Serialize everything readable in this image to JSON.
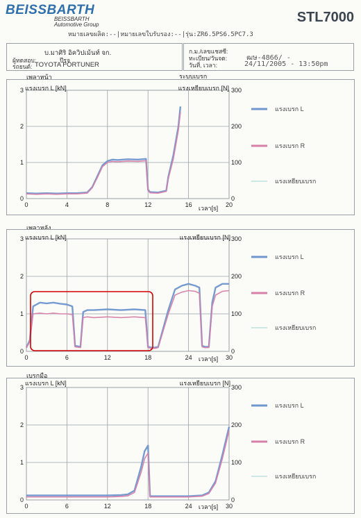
{
  "header": {
    "brand": "BEISSBARTH",
    "brand_sub1": "BEISSBARTH",
    "brand_sub2": "Automotive Group",
    "model": "STL7000",
    "subline": "หมายเลขผลิต:--|หมายเลขใบรับรอง:--|รุ่น:ZR6.5PS6.5PC7.3"
  },
  "info": {
    "company": "บ.มาศิริ อิควิปเม้นท์ จก.",
    "tester_label": "ผู้ทดสอบ:",
    "tester_value": "ปีรุจ",
    "car_label": "รถยนต์:",
    "car_value": "TOYOTA FORTUNER",
    "mileage_label": "ก.ม./เลขแชสซี:",
    "reg_label": "ทะเบียน/วันจด:",
    "reg_value": "ฒษ-4866/ -",
    "date_label": "วันที่, เวลา:",
    "date_value": "24/11/2005 - 13:50pm"
  },
  "charts": {
    "front": {
      "section": "เพลาหน้า",
      "system": "ระบบเบรก",
      "ylabel_left": "แรงเบรก L [kN]",
      "ylabel_right": "แรงเหยียบเบรก [N]",
      "xlabel": "เวลา[s]",
      "legend": [
        "แรงเบรก L",
        "แรงเบรก R",
        "แรงเหยียบเบรก"
      ]
    },
    "rear": {
      "section": "เพลาหลัง",
      "ylabel_left": "แรงเบรก L [kN]",
      "ylabel_right": "แรงเหยียบเบรก [N]",
      "xlabel": "เวลา[s]",
      "legend": [
        "แรงเบรก L",
        "แรงเบรก R",
        "แรงเหยียบเบรก"
      ]
    },
    "hand": {
      "section": "เบรกมือ",
      "ylabel_left": "แรงเบรก L [kN]",
      "ylabel_right": "แรงเหยียบเบรก [N]",
      "xlabel": "เวลา[s]",
      "legend": [
        "แรงเบรก L",
        "แรงเบรก R",
        "แรงเหยียบเบรก"
      ]
    }
  },
  "colors": {
    "left": "#6f96cf",
    "right": "#d77fa8",
    "pedal": "#9fd6cf",
    "highlight": "#d40000",
    "grid": "#9aa0a6"
  },
  "chart_data": [
    {
      "type": "line",
      "title": "เพลาหน้า",
      "xlabel": "เวลา[s]",
      "ylabel": "แรงเบรก L [kN]",
      "y2label": "แรงเหยียบเบรก [N]",
      "xlim": [
        0,
        20
      ],
      "ylim": [
        0,
        3
      ],
      "y2lim": [
        0,
        300
      ],
      "xticks": [
        0,
        4,
        8,
        12,
        16,
        20
      ],
      "yticks": [
        0,
        1,
        2,
        3
      ],
      "y2ticks": [
        0,
        100,
        200,
        300
      ],
      "series": [
        {
          "name": "แรงเบรก L",
          "x": [
            0,
            1,
            2,
            3,
            4,
            5,
            6,
            6.5,
            7,
            7.5,
            8,
            8.5,
            9,
            10,
            11,
            11.8,
            12,
            12.2,
            13,
            13.8,
            14,
            14.5,
            15,
            15.2
          ],
          "y": [
            0.15,
            0.14,
            0.15,
            0.14,
            0.15,
            0.15,
            0.17,
            0.32,
            0.62,
            0.92,
            1.04,
            1.08,
            1.07,
            1.09,
            1.08,
            1.1,
            0.25,
            0.18,
            0.17,
            0.22,
            0.6,
            1.2,
            2.0,
            2.55
          ]
        },
        {
          "name": "แรงเบรก R",
          "x": [
            0,
            1,
            2,
            3,
            4,
            5,
            6,
            6.5,
            7,
            7.5,
            8,
            8.5,
            9,
            10,
            11,
            11.8,
            12,
            12.2,
            13,
            13.8,
            14,
            14.5,
            15,
            15.2
          ],
          "y": [
            0.13,
            0.12,
            0.13,
            0.12,
            0.13,
            0.13,
            0.15,
            0.3,
            0.58,
            0.88,
            1.0,
            1.03,
            1.02,
            1.04,
            1.03,
            1.05,
            0.22,
            0.16,
            0.15,
            0.2,
            0.55,
            1.1,
            1.9,
            2.4
          ]
        }
      ]
    },
    {
      "type": "line",
      "title": "เพลาหลัง",
      "xlabel": "เวลา[s]",
      "ylabel": "แรงเบรก L [kN]",
      "y2label": "แรงเหยียบเบรก [N]",
      "xlim": [
        0,
        30
      ],
      "ylim": [
        0,
        3
      ],
      "y2lim": [
        0,
        300
      ],
      "xticks": [
        0,
        6,
        12,
        18,
        24,
        30
      ],
      "yticks": [
        0,
        1,
        2,
        3
      ],
      "y2ticks": [
        0,
        100,
        200,
        300
      ],
      "series": [
        {
          "name": "แรงเบรก L",
          "x": [
            0,
            0.5,
            1,
            2,
            3,
            4,
            5,
            6,
            6.8,
            7.2,
            8,
            8.4,
            9,
            10,
            12,
            14,
            16,
            17.6,
            18,
            18.5,
            19,
            19.5,
            21,
            22,
            23,
            24,
            25,
            25.6,
            26,
            26.4,
            27,
            27.5,
            28,
            29,
            30
          ],
          "y": [
            0.1,
            0.3,
            1.2,
            1.3,
            1.28,
            1.3,
            1.27,
            1.25,
            1.2,
            0.15,
            0.12,
            1.05,
            1.1,
            1.1,
            1.12,
            1.1,
            1.12,
            1.1,
            0.12,
            0.1,
            0.1,
            0.12,
            1.1,
            1.65,
            1.75,
            1.8,
            1.75,
            1.7,
            0.15,
            0.12,
            0.12,
            1.3,
            1.7,
            1.8,
            1.8
          ]
        },
        {
          "name": "แรงเบรก R",
          "x": [
            0,
            0.5,
            1,
            2,
            3,
            4,
            5,
            6,
            6.8,
            7.2,
            8,
            8.4,
            9,
            10,
            12,
            14,
            16,
            17.6,
            18,
            18.5,
            19,
            19.5,
            21,
            22,
            23,
            24,
            25,
            25.6,
            26,
            26.4,
            27,
            27.5,
            28,
            29,
            30
          ],
          "y": [
            0.1,
            0.25,
            1.0,
            1.02,
            1.0,
            1.02,
            1.0,
            1.0,
            0.98,
            0.12,
            0.1,
            0.9,
            0.92,
            0.9,
            0.92,
            0.9,
            0.92,
            0.9,
            0.1,
            0.08,
            0.08,
            0.1,
            1.0,
            1.5,
            1.58,
            1.62,
            1.6,
            1.55,
            0.12,
            0.1,
            0.1,
            1.2,
            1.5,
            1.6,
            1.62
          ]
        }
      ]
    },
    {
      "type": "line",
      "title": "เบรกมือ",
      "xlabel": "เวลา[s]",
      "ylabel": "แรงเบรก L [kN]",
      "y2label": "แรงเหยียบเบรก [N]",
      "xlim": [
        0,
        30
      ],
      "ylim": [
        0,
        3
      ],
      "y2lim": [
        0,
        300
      ],
      "xticks": [
        0,
        6,
        12,
        18,
        24,
        30
      ],
      "yticks": [
        0,
        1,
        2,
        3
      ],
      "y2ticks": [
        0,
        100,
        200,
        300
      ],
      "series": [
        {
          "name": "แรงเบรก L",
          "x": [
            0,
            2,
            4,
            6,
            8,
            10,
            12,
            14,
            15,
            16,
            17,
            17.5,
            18,
            18.3,
            19,
            21,
            24,
            26,
            27,
            28,
            29,
            30
          ],
          "y": [
            0.12,
            0.12,
            0.12,
            0.12,
            0.12,
            0.12,
            0.12,
            0.13,
            0.15,
            0.25,
            0.9,
            1.3,
            1.45,
            0.1,
            0.1,
            0.1,
            0.1,
            0.12,
            0.2,
            0.5,
            1.2,
            1.95
          ]
        },
        {
          "name": "แรงเบรก R",
          "x": [
            0,
            2,
            4,
            6,
            8,
            10,
            12,
            14,
            15,
            16,
            17,
            17.5,
            18,
            18.3,
            19,
            21,
            24,
            26,
            27,
            28,
            29,
            30
          ],
          "y": [
            0.08,
            0.08,
            0.08,
            0.08,
            0.08,
            0.08,
            0.08,
            0.09,
            0.11,
            0.2,
            0.75,
            1.1,
            1.25,
            0.08,
            0.08,
            0.08,
            0.08,
            0.1,
            0.17,
            0.45,
            1.1,
            1.85
          ]
        }
      ]
    }
  ]
}
